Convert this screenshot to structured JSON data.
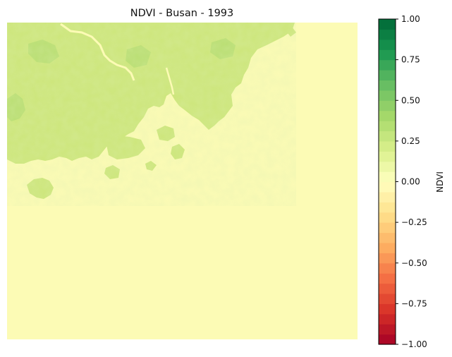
{
  "chart_data": {
    "type": "heatmap",
    "title": "NDVI - Busan - 1993",
    "xlabel": "",
    "ylabel": "",
    "axes_visible": false,
    "colormap": "RdYlGn",
    "colormap_discrete_levels": 32,
    "value_range": [
      -1.0,
      1.0
    ],
    "colorbar": {
      "label": "NDVI",
      "position": "right",
      "ticks": [
        1.0,
        0.75,
        0.5,
        0.25,
        0.0,
        -0.25,
        -0.5,
        -0.75,
        -1.0
      ],
      "tick_labels": [
        "1.00",
        "0.75",
        "0.50",
        "0.25",
        "0.00",
        "−0.25",
        "−0.50",
        "−0.75",
        "−1.00"
      ]
    },
    "dominant_values": {
      "sea_water": 0.05,
      "vegetated_land": 0.35,
      "dense_vegetation": 0.45
    },
    "colors": {
      "sea": "#fcfbb5",
      "land": "#cde67b",
      "land_dark": "#b9de72",
      "frame": "#000000"
    }
  }
}
